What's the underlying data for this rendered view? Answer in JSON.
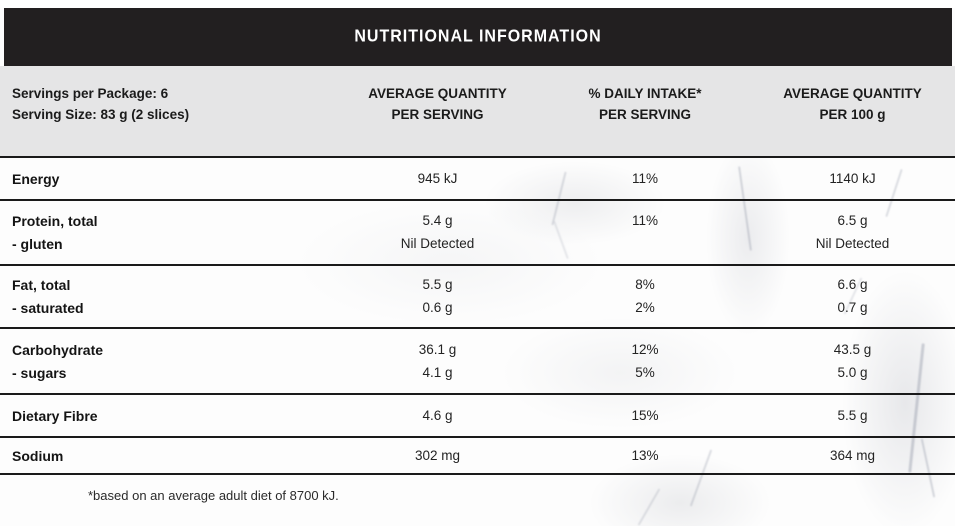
{
  "title": "NUTRITIONAL INFORMATION",
  "colors": {
    "header-bg": "#221f20",
    "band-bg": "#e5e5e6",
    "text": "#1b1b1b",
    "divider": "#1a1a1a"
  },
  "serving_info": {
    "servings_per_package": "Servings per Package: 6",
    "serving_size": "Serving Size: 83 g (2 slices)"
  },
  "columns": [
    {
      "line1": "AVERAGE QUANTITY",
      "line2": "PER SERVING"
    },
    {
      "line1": "% DAILY INTAKE*",
      "line2": "PER SERVING"
    },
    {
      "line1": "AVERAGE QUANTITY",
      "line2": "PER 100 g"
    }
  ],
  "rows": [
    {
      "label": "Energy",
      "per_serving": "945 kJ",
      "daily_intake": "11%",
      "per_100g": "1140 kJ",
      "sub": []
    },
    {
      "label": "Protein, total",
      "per_serving": "5.4 g",
      "daily_intake": "11%",
      "per_100g": "6.5 g",
      "sub": [
        {
          "label": "- gluten",
          "per_serving": "Nil Detected",
          "daily_intake": "",
          "per_100g": "Nil Detected"
        }
      ]
    },
    {
      "label": "Fat, total",
      "per_serving": "5.5 g",
      "daily_intake": "8%",
      "per_100g": "6.6 g",
      "sub": [
        {
          "label": "- saturated",
          "per_serving": "0.6 g",
          "daily_intake": "2%",
          "per_100g": "0.7 g"
        }
      ]
    },
    {
      "label": "Carbohydrate",
      "per_serving": "36.1 g",
      "daily_intake": "12%",
      "per_100g": "43.5 g",
      "sub": [
        {
          "label": "- sugars",
          "per_serving": "4.1 g",
          "daily_intake": "5%",
          "per_100g": "5.0 g"
        }
      ]
    },
    {
      "label": "Dietary Fibre",
      "per_serving": "4.6 g",
      "daily_intake": "15%",
      "per_100g": "5.5 g",
      "sub": []
    },
    {
      "label": "Sodium",
      "per_serving": "302 mg",
      "daily_intake": "13%",
      "per_100g": "364 mg",
      "sub": []
    }
  ],
  "footnote": "*based on an average adult diet of 8700 kJ."
}
